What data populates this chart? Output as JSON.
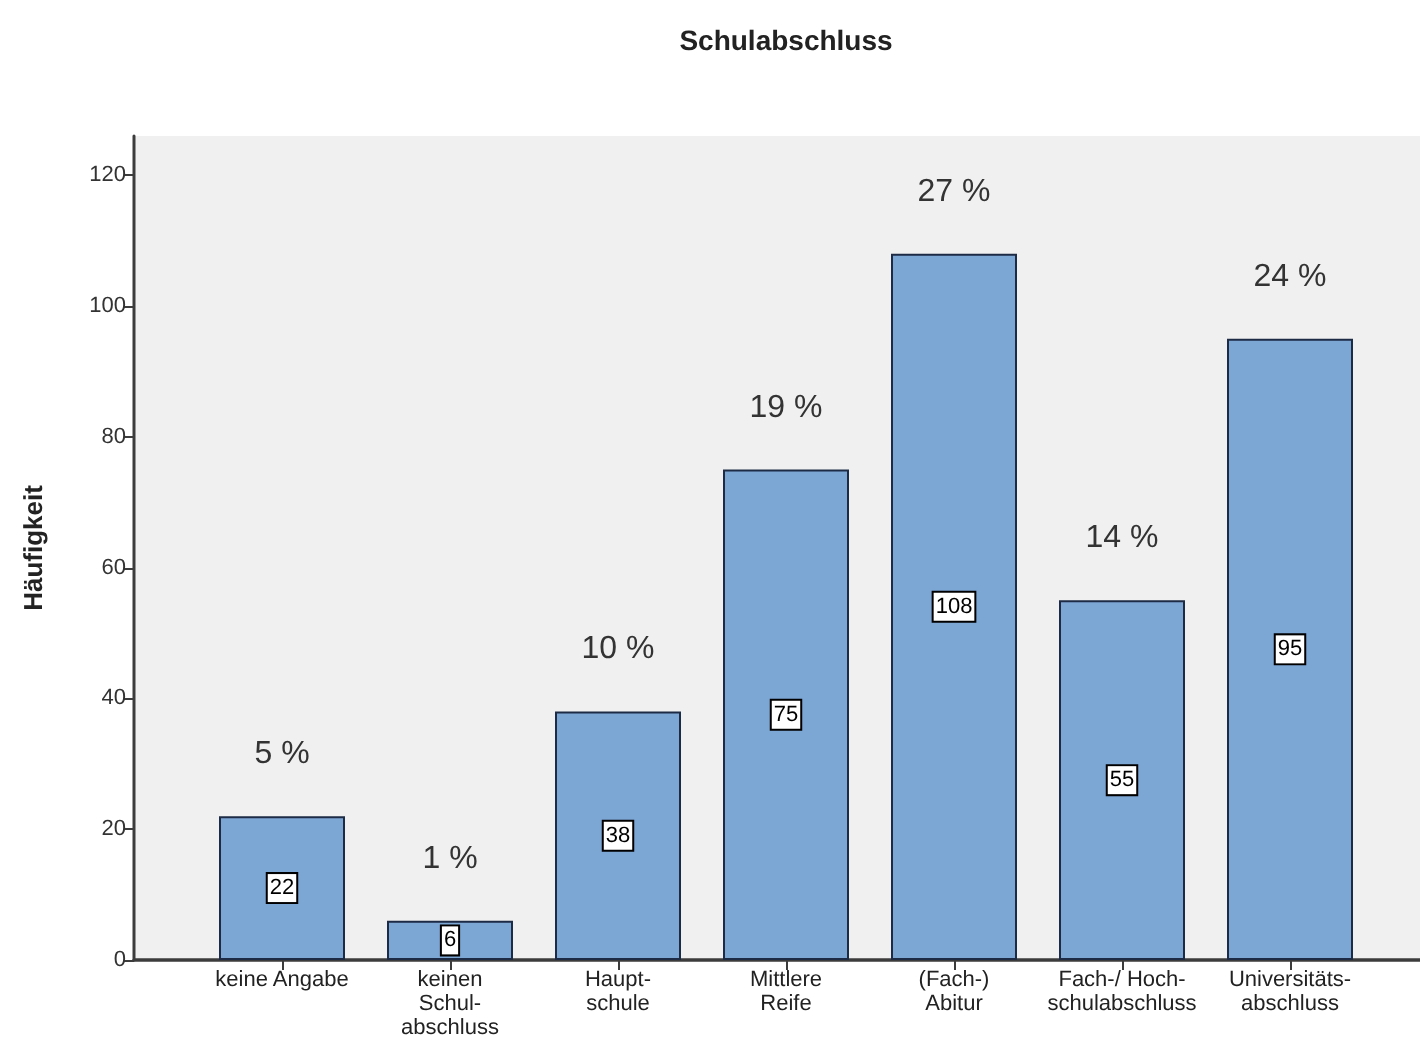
{
  "chart_data": {
    "type": "bar",
    "title": "Schulabschluss",
    "ylabel": "Häufigkeit",
    "categories": [
      "keine Angabe",
      "keinen\nSchul-\nabschluss",
      "Haupt-\nschule",
      "Mittlere\nReife",
      "(Fach-)\nAbitur",
      "Fach-/ Hoch-\nschulabschluss",
      "Universitäts-\nabschluss"
    ],
    "values": [
      22,
      6,
      38,
      75,
      108,
      55,
      95
    ],
    "color": "#7ca6d4",
    "data_labels": true,
    "ylim": [
      0,
      126
    ],
    "yticks": [
      0,
      20,
      40,
      60,
      80,
      100,
      120
    ],
    "annotations": [
      {
        "text": "5 %",
        "x": "keine Angabe",
        "y": 22
      },
      {
        "text": "1 %",
        "x": "keinen\nSchul-\nabschluss",
        "y": 6
      },
      {
        "text": "10 %",
        "x": "Haupt-\nschule",
        "y": 38
      },
      {
        "text": "19 %",
        "x": "Mittlere\nReife",
        "y": 75
      },
      {
        "text": "27 %",
        "x": "(Fach-)\nAbitur",
        "y": 108
      },
      {
        "text": "14 %",
        "x": "Fach-/ Hoch-\nschulabschluss",
        "y": 55
      },
      {
        "text": "24 %",
        "x": "Universitäts-\nabschluss",
        "y": 95
      }
    ]
  }
}
